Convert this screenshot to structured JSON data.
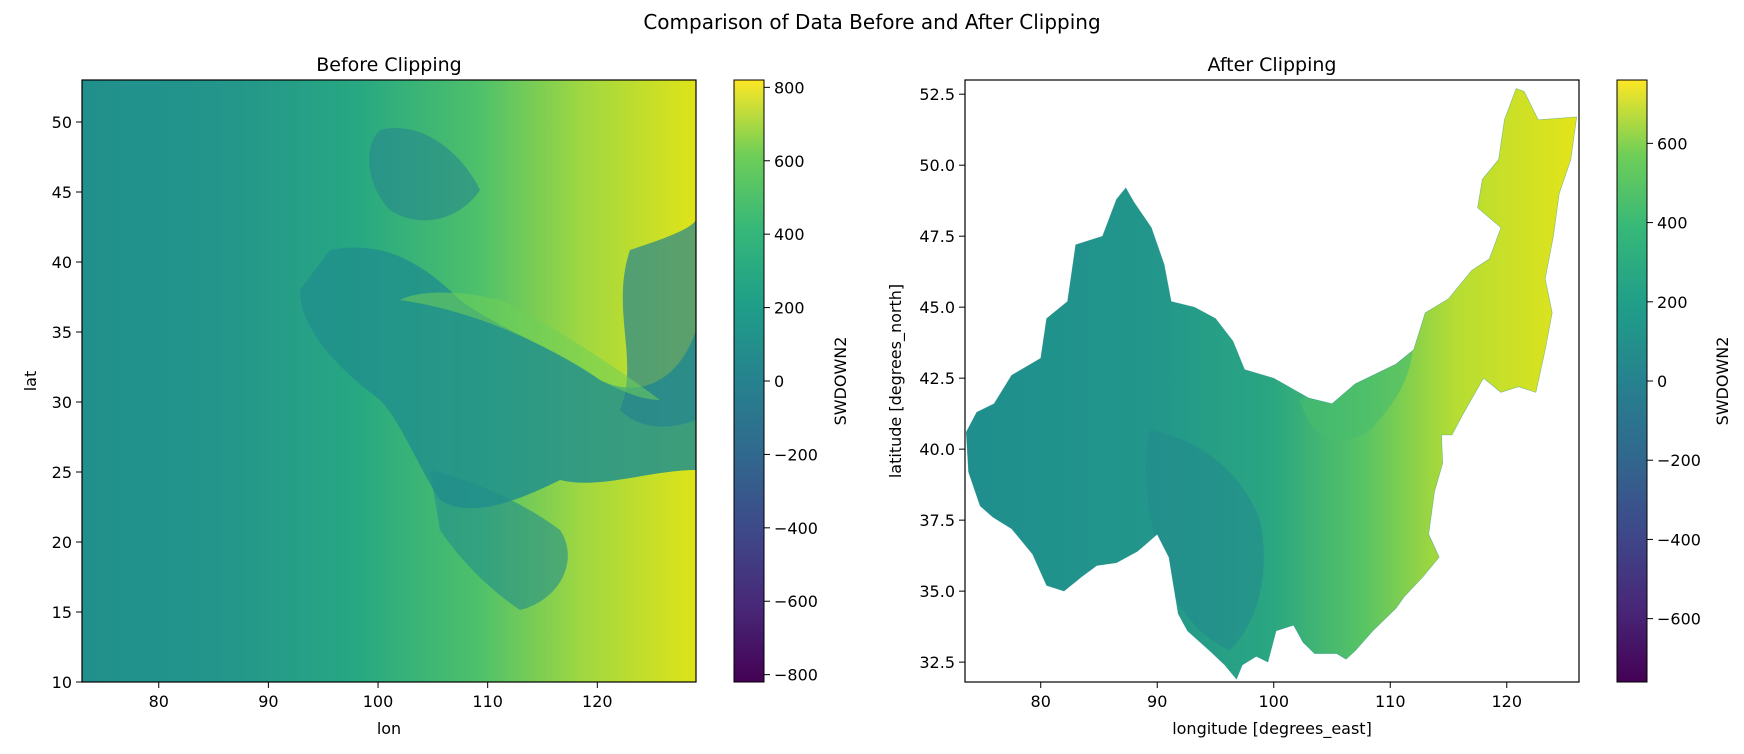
{
  "chart_data": [
    {
      "type": "heatmap",
      "suptitle": "Comparison of Data Before and After Clipping",
      "title": "Before Clipping",
      "xlabel": "lon",
      "ylabel": "lat",
      "xlim": [
        73,
        129
      ],
      "ylim": [
        10,
        53
      ],
      "xticks": [
        80,
        90,
        100,
        110,
        120
      ],
      "xtick_labels": [
        "80",
        "90",
        "100",
        "110",
        "120"
      ],
      "yticks": [
        10,
        15,
        20,
        25,
        30,
        35,
        40,
        45,
        50
      ],
      "ytick_labels": [
        "10",
        "15",
        "20",
        "25",
        "30",
        "35",
        "40",
        "45",
        "50"
      ],
      "variable": "SWDOWN2",
      "colormap": "viridis",
      "color_range": [
        -820,
        820
      ],
      "colorbar_ticks": [
        -800,
        -600,
        -400,
        -200,
        0,
        200,
        400,
        600,
        800
      ],
      "colorbar_tick_labels": [
        "−800",
        "−600",
        "−400",
        "−200",
        "0",
        "200",
        "400",
        "600",
        "800"
      ],
      "colorbar_label": "SWDOWN2",
      "field": {
        "lon_values": [
          73,
          85,
          95,
          105,
          115,
          122,
          129
        ],
        "values_by_lon": [
          80,
          150,
          240,
          360,
          520,
          650,
          740
        ],
        "note_regions": "cloud/mountain patch near lon 100-115, lat 25-45 around 100-200"
      }
    },
    {
      "type": "heatmap",
      "title": "After Clipping",
      "xlabel": "longitude [degrees_east]",
      "ylabel": "latitude [degrees_north]",
      "xlim": [
        73.5,
        126.2
      ],
      "ylim": [
        31.8,
        53
      ],
      "xticks": [
        80,
        90,
        100,
        110,
        120
      ],
      "xtick_labels": [
        "80",
        "90",
        "100",
        "110",
        "120"
      ],
      "yticks": [
        32.5,
        35.0,
        37.5,
        40.0,
        42.5,
        45.0,
        47.5,
        50.0,
        52.5
      ],
      "ytick_labels": [
        "32.5",
        "35.0",
        "37.5",
        "40.0",
        "42.5",
        "45.0",
        "47.5",
        "50.0",
        "52.5"
      ],
      "variable": "SWDOWN2",
      "colormap": "viridis",
      "color_range": [
        -760,
        760
      ],
      "colorbar_ticks": [
        -600,
        -400,
        -200,
        0,
        200,
        400,
        600
      ],
      "colorbar_tick_labels": [
        "−600",
        "−400",
        "−200",
        "0",
        "200",
        "400",
        "600"
      ],
      "colorbar_label": "SWDOWN2",
      "region_outline_lonlat": [
        [
          73.6,
          40.6
        ],
        [
          74.5,
          41.3
        ],
        [
          76,
          41.6
        ],
        [
          77.5,
          42.6
        ],
        [
          80,
          43.2
        ],
        [
          80.5,
          44.6
        ],
        [
          82.3,
          45.2
        ],
        [
          83,
          47.2
        ],
        [
          85.3,
          47.5
        ],
        [
          86.5,
          48.8
        ],
        [
          87.3,
          49.2
        ],
        [
          88,
          48.7
        ],
        [
          89.5,
          47.8
        ],
        [
          90.6,
          46.5
        ],
        [
          91.2,
          45.2
        ],
        [
          93.2,
          45.0
        ],
        [
          95,
          44.6
        ],
        [
          96.5,
          43.8
        ],
        [
          97.5,
          42.8
        ],
        [
          100,
          42.5
        ],
        [
          103,
          41.8
        ],
        [
          105,
          41.6
        ],
        [
          107,
          42.3
        ],
        [
          109,
          42.7
        ],
        [
          110.5,
          43.0
        ],
        [
          112,
          43.5
        ],
        [
          113,
          44.8
        ],
        [
          115,
          45.3
        ],
        [
          117,
          46.3
        ],
        [
          118.5,
          46.7
        ],
        [
          119.5,
          47.8
        ],
        [
          117.5,
          48.5
        ],
        [
          117.9,
          49.5
        ],
        [
          119.3,
          50.2
        ],
        [
          119.8,
          51.6
        ],
        [
          120.8,
          52.7
        ],
        [
          121.5,
          52.6
        ],
        [
          122.7,
          51.6
        ],
        [
          126.0,
          51.7
        ],
        [
          125.5,
          50.2
        ],
        [
          124.5,
          49.0
        ],
        [
          124.0,
          47.5
        ],
        [
          123.3,
          46.0
        ],
        [
          123.9,
          44.8
        ],
        [
          123.3,
          43.5
        ],
        [
          122.5,
          42.0
        ],
        [
          121.0,
          42.2
        ],
        [
          119.5,
          42.0
        ],
        [
          118.0,
          42.5
        ],
        [
          116.2,
          41.2
        ],
        [
          115.3,
          40.5
        ],
        [
          114.4,
          40.5
        ],
        [
          114.5,
          39.5
        ],
        [
          113.8,
          38.5
        ],
        [
          113.3,
          37.0
        ],
        [
          114.2,
          36.2
        ],
        [
          112.8,
          35.5
        ],
        [
          111.2,
          34.8
        ],
        [
          110.5,
          34.4
        ],
        [
          108.5,
          33.6
        ],
        [
          107,
          32.9
        ],
        [
          106.2,
          32.6
        ],
        [
          105.4,
          32.8
        ],
        [
          103.5,
          32.8
        ],
        [
          102.5,
          33.2
        ],
        [
          101.7,
          33.8
        ],
        [
          100.2,
          33.6
        ],
        [
          99.5,
          32.5
        ],
        [
          98.5,
          32.7
        ],
        [
          97.3,
          32.4
        ],
        [
          96.8,
          31.9
        ],
        [
          95.8,
          32.4
        ],
        [
          94.5,
          32.9
        ],
        [
          92.6,
          33.6
        ],
        [
          91.8,
          34.2
        ],
        [
          91.0,
          36.2
        ],
        [
          90.0,
          37.0
        ],
        [
          88.3,
          36.4
        ],
        [
          86.5,
          36.0
        ],
        [
          84.8,
          35.9
        ],
        [
          83.5,
          35.5
        ],
        [
          82.0,
          35.0
        ],
        [
          80.5,
          35.2
        ],
        [
          79.3,
          36.3
        ],
        [
          77.5,
          37.2
        ],
        [
          75.9,
          37.6
        ],
        [
          74.8,
          38.0
        ],
        [
          73.8,
          39.2
        ],
        [
          73.6,
          40.6
        ]
      ],
      "field": {
        "lon_values": [
          73,
          85,
          95,
          105,
          115,
          122,
          126
        ],
        "values_by_lon": [
          80,
          140,
          220,
          350,
          520,
          650,
          700
        ]
      }
    }
  ]
}
